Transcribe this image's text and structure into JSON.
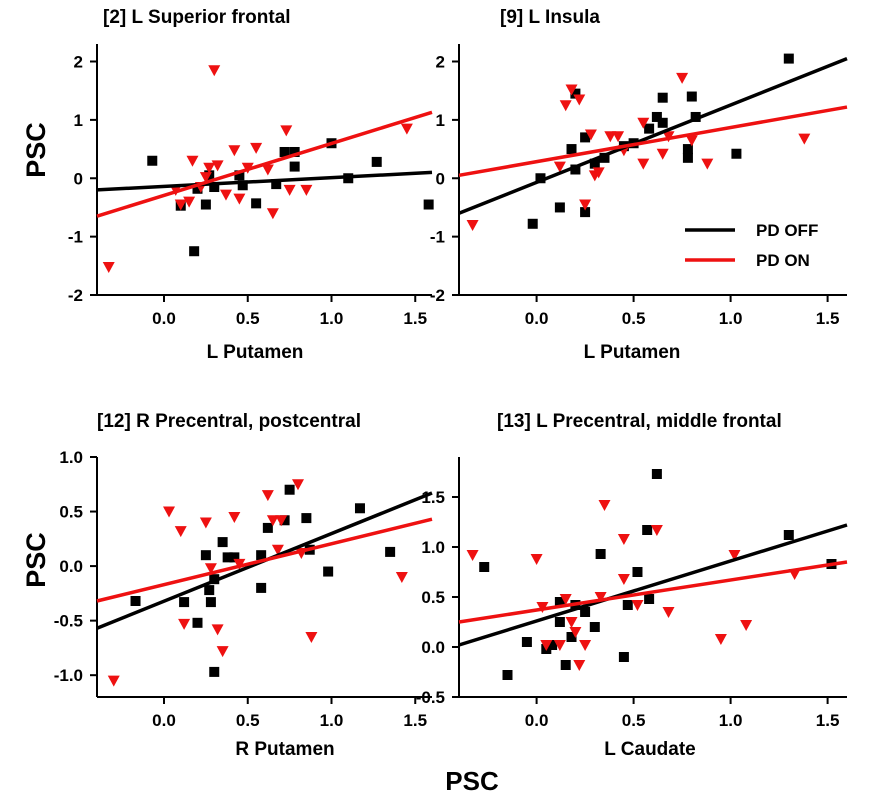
{
  "shared_xlabel": "PSC",
  "legend": [
    {
      "name": "PD OFF",
      "color": "#000000"
    },
    {
      "name": "PD ON",
      "color": "#ee1111"
    }
  ],
  "chart_data": [
    {
      "type": "scatter",
      "title": "[2] L Superior frontal",
      "xlabel": "L Putamen",
      "ylabel": "PSC",
      "xlim": [
        -0.4,
        1.6
      ],
      "ylim": [
        -2,
        2.3
      ],
      "xticks": [
        "0.0",
        "0.5",
        "1.0",
        "1.5"
      ],
      "yticks": [
        "-2",
        "-1",
        "0",
        "1",
        "2"
      ],
      "series": [
        {
          "name": "PD OFF",
          "marker": "square",
          "color": "#000000",
          "points": [
            [
              -0.07,
              0.3
            ],
            [
              0.1,
              -0.47
            ],
            [
              0.18,
              -1.25
            ],
            [
              0.2,
              -0.18
            ],
            [
              0.25,
              -0.45
            ],
            [
              0.27,
              0.05
            ],
            [
              0.3,
              -0.15
            ],
            [
              0.45,
              0.05
            ],
            [
              0.47,
              -0.12
            ],
            [
              0.55,
              -0.43
            ],
            [
              0.67,
              -0.1
            ],
            [
              0.72,
              0.45
            ],
            [
              0.78,
              0.45
            ],
            [
              0.78,
              0.2
            ],
            [
              1.0,
              0.6
            ],
            [
              1.1,
              0.0
            ],
            [
              1.27,
              0.28
            ],
            [
              1.58,
              -0.45
            ]
          ],
          "fit": [
            [
              -0.4,
              -0.2
            ],
            [
              1.6,
              0.1
            ]
          ]
        },
        {
          "name": "PD ON",
          "marker": "triangle-down",
          "color": "#ee1111",
          "points": [
            [
              -0.33,
              -1.52
            ],
            [
              0.07,
              -0.2
            ],
            [
              0.1,
              -0.45
            ],
            [
              0.15,
              -0.4
            ],
            [
              0.17,
              0.3
            ],
            [
              0.22,
              -0.15
            ],
            [
              0.25,
              0.02
            ],
            [
              0.27,
              0.18
            ],
            [
              0.3,
              1.85
            ],
            [
              0.32,
              0.22
            ],
            [
              0.37,
              -0.28
            ],
            [
              0.42,
              0.48
            ],
            [
              0.45,
              -0.35
            ],
            [
              0.5,
              0.18
            ],
            [
              0.55,
              0.52
            ],
            [
              0.62,
              0.15
            ],
            [
              0.65,
              -0.6
            ],
            [
              0.73,
              0.82
            ],
            [
              0.75,
              -0.2
            ],
            [
              0.85,
              -0.2
            ],
            [
              1.45,
              0.85
            ]
          ],
          "fit": [
            [
              -0.4,
              -0.65
            ],
            [
              1.6,
              1.13
            ]
          ]
        }
      ]
    },
    {
      "type": "scatter",
      "title": "[9] L Insula",
      "xlabel": "L Putamen",
      "ylabel": "",
      "xlim": [
        -0.4,
        1.6
      ],
      "ylim": [
        -2,
        2.3
      ],
      "xticks": [
        "0.0",
        "0.5",
        "1.0",
        "1.5"
      ],
      "yticks": [
        "-2",
        "-1",
        "0",
        "1",
        "2"
      ],
      "series": [
        {
          "name": "PD OFF",
          "marker": "square",
          "color": "#000000",
          "points": [
            [
              -0.02,
              -0.78
            ],
            [
              0.02,
              0.0
            ],
            [
              0.12,
              -0.5
            ],
            [
              0.18,
              0.5
            ],
            [
              0.2,
              1.45
            ],
            [
              0.2,
              0.15
            ],
            [
              0.25,
              0.7
            ],
            [
              0.25,
              -0.58
            ],
            [
              0.3,
              0.25
            ],
            [
              0.35,
              0.35
            ],
            [
              0.45,
              0.55
            ],
            [
              0.5,
              0.6
            ],
            [
              0.58,
              0.85
            ],
            [
              0.62,
              1.05
            ],
            [
              0.65,
              0.95
            ],
            [
              0.65,
              1.38
            ],
            [
              0.78,
              0.5
            ],
            [
              0.78,
              0.35
            ],
            [
              0.8,
              1.4
            ],
            [
              0.82,
              1.05
            ],
            [
              1.03,
              0.42
            ],
            [
              1.3,
              2.05
            ]
          ],
          "fit": [
            [
              -0.4,
              -0.6
            ],
            [
              1.6,
              2.05
            ]
          ]
        },
        {
          "name": "PD ON",
          "marker": "triangle-down",
          "color": "#ee1111",
          "points": [
            [
              -0.33,
              -0.8
            ],
            [
              0.12,
              0.2
            ],
            [
              0.15,
              1.25
            ],
            [
              0.18,
              1.52
            ],
            [
              0.22,
              1.35
            ],
            [
              0.25,
              -0.45
            ],
            [
              0.28,
              0.75
            ],
            [
              0.3,
              0.05
            ],
            [
              0.32,
              0.1
            ],
            [
              0.38,
              0.72
            ],
            [
              0.42,
              0.72
            ],
            [
              0.45,
              0.48
            ],
            [
              0.55,
              0.95
            ],
            [
              0.55,
              0.25
            ],
            [
              0.65,
              0.42
            ],
            [
              0.68,
              0.72
            ],
            [
              0.75,
              1.72
            ],
            [
              0.8,
              0.65
            ],
            [
              0.88,
              0.25
            ],
            [
              1.38,
              0.68
            ]
          ],
          "fit": [
            [
              -0.4,
              0.05
            ],
            [
              1.6,
              1.22
            ]
          ]
        }
      ]
    },
    {
      "type": "scatter",
      "title": "[12] R Precentral, postcentral",
      "xlabel": "R Putamen",
      "ylabel": "PSC",
      "xlim": [
        -0.4,
        1.6
      ],
      "ylim": [
        -1.2,
        1.0
      ],
      "xticks": [
        "0.0",
        "0.5",
        "1.0",
        "1.5"
      ],
      "yticks": [
        "-1.0",
        "-0.5",
        "0.0",
        "0.5",
        "1.0"
      ],
      "series": [
        {
          "name": "PD OFF",
          "marker": "square",
          "color": "#000000",
          "points": [
            [
              -0.17,
              -0.32
            ],
            [
              0.12,
              -0.33
            ],
            [
              0.2,
              -0.52
            ],
            [
              0.25,
              0.1
            ],
            [
              0.27,
              -0.22
            ],
            [
              0.28,
              -0.33
            ],
            [
              0.3,
              -0.12
            ],
            [
              0.3,
              -0.97
            ],
            [
              0.35,
              0.22
            ],
            [
              0.38,
              0.08
            ],
            [
              0.42,
              0.08
            ],
            [
              0.58,
              0.1
            ],
            [
              0.58,
              -0.2
            ],
            [
              0.62,
              0.35
            ],
            [
              0.72,
              0.42
            ],
            [
              0.75,
              0.7
            ],
            [
              0.85,
              0.44
            ],
            [
              0.87,
              0.15
            ],
            [
              0.98,
              -0.05
            ],
            [
              1.17,
              0.53
            ],
            [
              1.35,
              0.13
            ]
          ],
          "fit": [
            [
              -0.4,
              -0.57
            ],
            [
              1.6,
              0.67
            ]
          ]
        },
        {
          "name": "PD ON",
          "marker": "triangle-down",
          "color": "#ee1111",
          "points": [
            [
              -0.3,
              -1.05
            ],
            [
              0.03,
              0.5
            ],
            [
              0.1,
              0.32
            ],
            [
              0.12,
              -0.53
            ],
            [
              0.25,
              0.4
            ],
            [
              0.28,
              -0.02
            ],
            [
              0.32,
              -0.58
            ],
            [
              0.35,
              -0.78
            ],
            [
              0.42,
              0.45
            ],
            [
              0.45,
              0.02
            ],
            [
              0.62,
              0.65
            ],
            [
              0.65,
              0.42
            ],
            [
              0.68,
              0.15
            ],
            [
              0.7,
              0.42
            ],
            [
              0.8,
              0.75
            ],
            [
              0.82,
              0.12
            ],
            [
              0.88,
              -0.65
            ],
            [
              1.42,
              -0.1
            ]
          ],
          "fit": [
            [
              -0.4,
              -0.32
            ],
            [
              1.6,
              0.43
            ]
          ]
        }
      ]
    },
    {
      "type": "scatter",
      "title": "[13] L Precentral, middle frontal",
      "xlabel": "L Caudate",
      "ylabel": "",
      "xlim": [
        -0.4,
        1.6
      ],
      "ylim": [
        -0.5,
        1.9
      ],
      "xticks": [
        "0.0",
        "0.5",
        "1.0",
        "1.5"
      ],
      "yticks": [
        "-0.5",
        "0.0",
        "0.5",
        "1.0",
        "1.5"
      ],
      "series": [
        {
          "name": "PD OFF",
          "marker": "square",
          "color": "#000000",
          "points": [
            [
              -0.27,
              0.8
            ],
            [
              -0.15,
              -0.28
            ],
            [
              -0.05,
              0.05
            ],
            [
              0.05,
              -0.02
            ],
            [
              0.08,
              0.02
            ],
            [
              0.12,
              0.25
            ],
            [
              0.12,
              0.45
            ],
            [
              0.15,
              -0.18
            ],
            [
              0.18,
              0.1
            ],
            [
              0.2,
              0.42
            ],
            [
              0.25,
              0.35
            ],
            [
              0.3,
              0.2
            ],
            [
              0.33,
              0.93
            ],
            [
              0.45,
              -0.1
            ],
            [
              0.47,
              0.42
            ],
            [
              0.52,
              0.75
            ],
            [
              0.57,
              1.17
            ],
            [
              0.58,
              0.48
            ],
            [
              0.62,
              1.73
            ],
            [
              1.3,
              1.12
            ],
            [
              1.52,
              0.83
            ]
          ],
          "fit": [
            [
              -0.4,
              0.02
            ],
            [
              1.6,
              1.22
            ]
          ]
        },
        {
          "name": "PD ON",
          "marker": "triangle-down",
          "color": "#ee1111",
          "points": [
            [
              -0.33,
              0.92
            ],
            [
              0.0,
              0.88
            ],
            [
              0.03,
              0.4
            ],
            [
              0.05,
              0.02
            ],
            [
              0.12,
              0.02
            ],
            [
              0.15,
              0.48
            ],
            [
              0.18,
              0.25
            ],
            [
              0.2,
              0.15
            ],
            [
              0.22,
              -0.18
            ],
            [
              0.25,
              0.02
            ],
            [
              0.33,
              0.5
            ],
            [
              0.35,
              1.42
            ],
            [
              0.45,
              0.68
            ],
            [
              0.45,
              1.08
            ],
            [
              0.52,
              0.42
            ],
            [
              0.62,
              1.17
            ],
            [
              0.68,
              0.35
            ],
            [
              0.95,
              0.08
            ],
            [
              1.02,
              0.92
            ],
            [
              1.08,
              0.22
            ],
            [
              1.33,
              0.73
            ]
          ],
          "fit": [
            [
              -0.4,
              0.25
            ],
            [
              1.6,
              0.85
            ]
          ]
        }
      ]
    }
  ]
}
